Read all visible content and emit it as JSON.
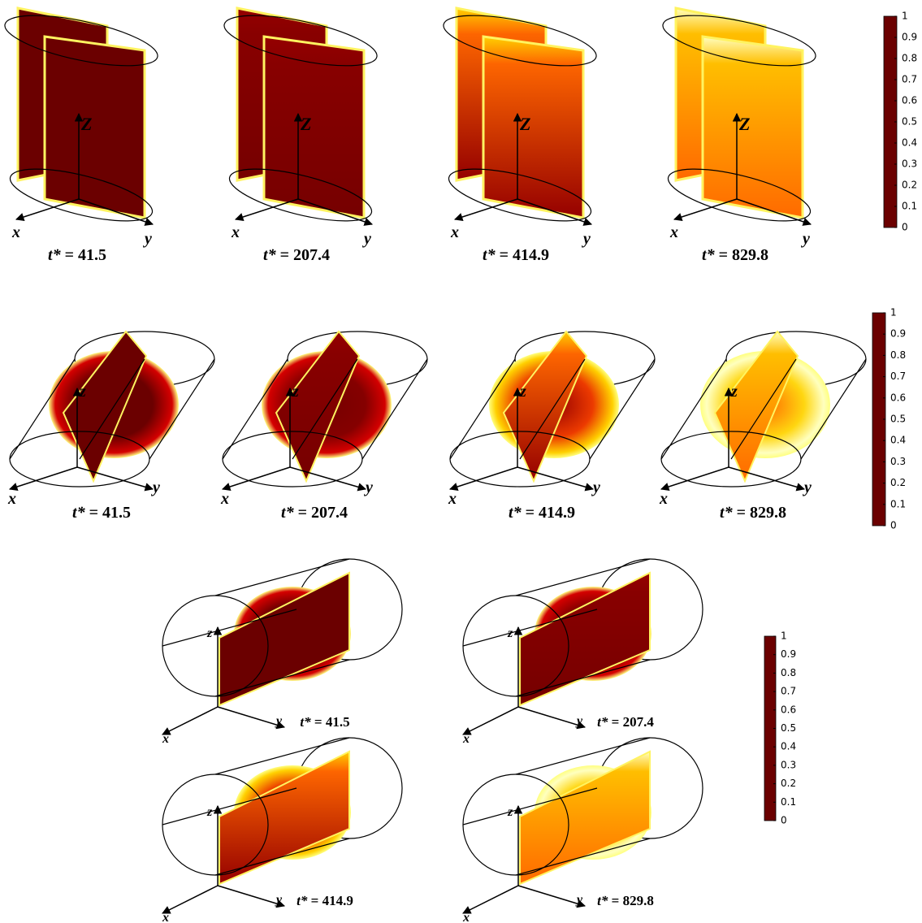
{
  "figures": [
    {
      "panels": [
        {
          "time_label": "t* = 41.5",
          "axes": {
            "x": "x",
            "y": "y",
            "z": "Z"
          }
        },
        {
          "time_label": "t* = 207.4",
          "axes": {
            "x": "x",
            "y": "y",
            "z": "Z"
          }
        },
        {
          "time_label": "t* = 414.9",
          "axes": {
            "x": "x",
            "y": "y",
            "z": "Z"
          }
        },
        {
          "time_label": "t* = 829.8",
          "axes": {
            "x": "x",
            "y": "y",
            "z": "Z"
          }
        }
      ],
      "colorbar": {
        "ticks": [
          0,
          0.1,
          0.2,
          0.3,
          0.4,
          0.5,
          0.6,
          0.7,
          0.8,
          0.9,
          1
        ]
      }
    },
    {
      "panels": [
        {
          "time_label": "t* = 41.5",
          "axes": {
            "x": "x",
            "y": "y",
            "z": "z"
          }
        },
        {
          "time_label": "t* = 207.4",
          "axes": {
            "x": "x",
            "y": "y",
            "z": "z"
          }
        },
        {
          "time_label": "t* = 414.9",
          "axes": {
            "x": "x",
            "y": "y",
            "z": "z"
          }
        },
        {
          "time_label": "t* = 829.8",
          "axes": {
            "x": "x",
            "y": "y",
            "z": "z"
          }
        }
      ],
      "colorbar": {
        "ticks": [
          0,
          0.1,
          0.2,
          0.3,
          0.4,
          0.5,
          0.6,
          0.7,
          0.8,
          0.9,
          1
        ]
      }
    },
    {
      "panels": [
        {
          "time_label": "t* = 41.5",
          "axes": {
            "x": "x",
            "y": "y",
            "z": "z"
          }
        },
        {
          "time_label": "t* = 207.4",
          "axes": {
            "x": "x",
            "y": "y",
            "z": "z"
          }
        },
        {
          "time_label": "t* = 414.9",
          "axes": {
            "x": "x",
            "y": "y",
            "z": "z"
          }
        },
        {
          "time_label": "t* = 829.8",
          "axes": {
            "x": "x",
            "y": "y",
            "z": "z"
          }
        }
      ],
      "colorbar": {
        "ticks": [
          0,
          0.1,
          0.2,
          0.3,
          0.4,
          0.5,
          0.6,
          0.7,
          0.8,
          0.9,
          1
        ]
      }
    }
  ]
}
